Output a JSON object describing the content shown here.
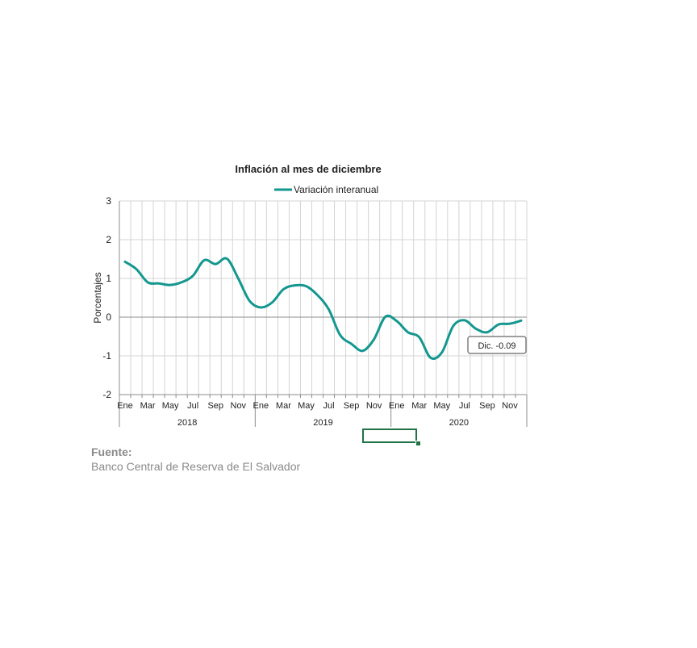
{
  "chart_data": {
    "type": "line",
    "title": "Inflación al mes de diciembre",
    "ylabel": "Porcentajes",
    "ylim": [
      -2,
      3
    ],
    "yticks": [
      "3",
      "2",
      "1",
      "0",
      "-1",
      "-2"
    ],
    "x_tick_labels": [
      "Ene",
      "Mar",
      "May",
      "Jul",
      "Sep",
      "Nov",
      "Ene",
      "Mar",
      "May",
      "Jul",
      "Sep",
      "Nov",
      "Ene",
      "Mar",
      "May",
      "Jul",
      "Sep",
      "Nov"
    ],
    "year_groups": [
      "2018",
      "2019",
      "2020"
    ],
    "legend_position": "top",
    "grid": true,
    "line_color": "#13978f",
    "series": [
      {
        "name": "Variación interanual",
        "values": [
          1.43,
          1.24,
          0.9,
          0.87,
          0.83,
          0.9,
          1.07,
          1.47,
          1.37,
          1.51,
          1.0,
          0.42,
          0.25,
          0.38,
          0.72,
          0.82,
          0.8,
          0.57,
          0.2,
          -0.46,
          -0.69,
          -0.87,
          -0.57,
          0.01,
          -0.1,
          -0.39,
          -0.52,
          -1.05,
          -0.91,
          -0.23,
          -0.08,
          -0.3,
          -0.39,
          -0.19,
          -0.17,
          -0.09
        ]
      }
    ],
    "annotation": "Dic. -0.09"
  },
  "source": {
    "label": "Fuente:",
    "text": "Banco Central de Reserva de El Salvador"
  }
}
